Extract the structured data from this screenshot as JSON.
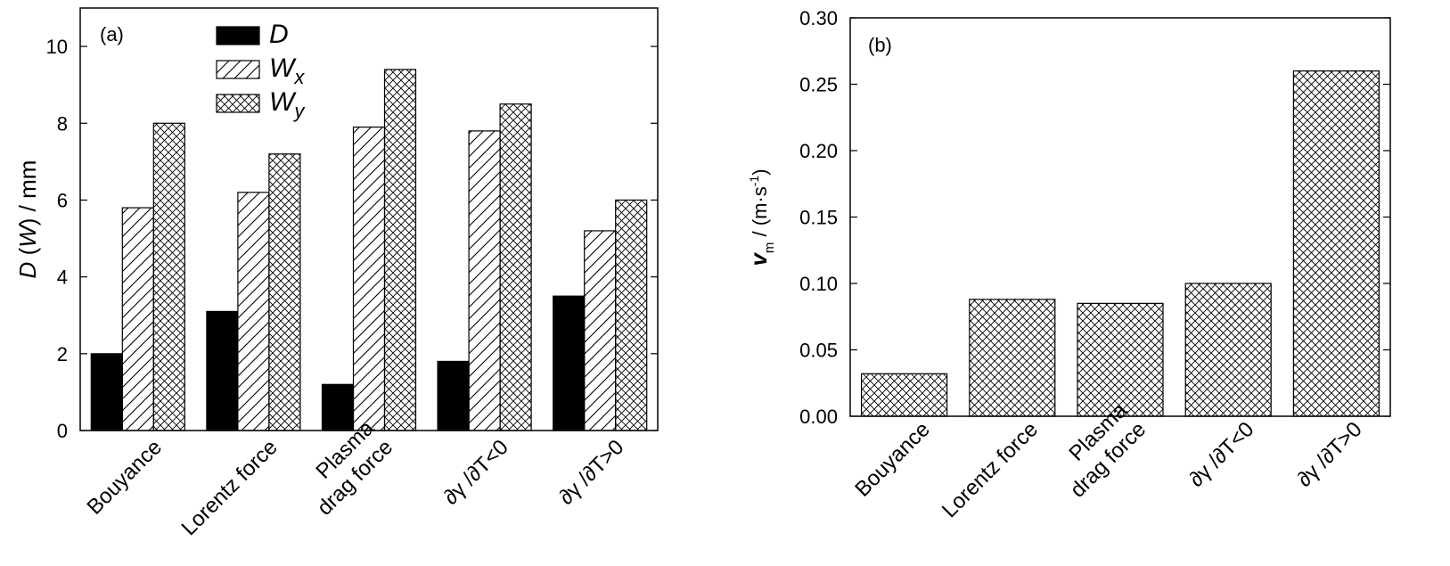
{
  "chart_data": [
    {
      "type": "bar",
      "panel_label": "(a)",
      "ylabel_parts": [
        "D",
        " (",
        "W",
        ") / mm"
      ],
      "ylim": [
        0,
        11
      ],
      "yticks": [
        0,
        2,
        4,
        6,
        8,
        10
      ],
      "categories": [
        [
          "Bouyance"
        ],
        [
          "Lorentz force"
        ],
        [
          "Plasma",
          "drag force"
        ],
        [
          "∂γ /∂T<0"
        ],
        [
          "∂γ /∂T>0"
        ]
      ],
      "series": [
        {
          "name": "D",
          "sub": "",
          "pattern": "solid",
          "values": [
            2.0,
            3.1,
            1.2,
            1.8,
            3.5
          ]
        },
        {
          "name": "W",
          "sub": "x",
          "pattern": "hatch",
          "values": [
            5.8,
            6.2,
            7.9,
            7.8,
            5.2
          ]
        },
        {
          "name": "W",
          "sub": "y",
          "pattern": "cross",
          "values": [
            8.0,
            7.2,
            9.4,
            8.5,
            6.0
          ]
        }
      ],
      "legend_position": "top-center",
      "grid": false
    },
    {
      "type": "bar",
      "panel_label": "(b)",
      "ylabel_parts": [
        "v",
        "m",
        " / (m·s",
        "-1",
        ")"
      ],
      "ylim": [
        0,
        0.3
      ],
      "yticks": [
        "0.00",
        "0.05",
        "0.10",
        "0.15",
        "0.20",
        "0.25",
        "0.30"
      ],
      "categories": [
        [
          "Bouyance"
        ],
        [
          "Lorentz force"
        ],
        [
          "Plasma",
          "drag force"
        ],
        [
          "∂γ /∂T<0"
        ],
        [
          "∂γ /∂T>0"
        ]
      ],
      "series": [
        {
          "pattern": "cross",
          "values": [
            0.032,
            0.088,
            0.085,
            0.1,
            0.26
          ]
        }
      ],
      "grid": false
    }
  ]
}
